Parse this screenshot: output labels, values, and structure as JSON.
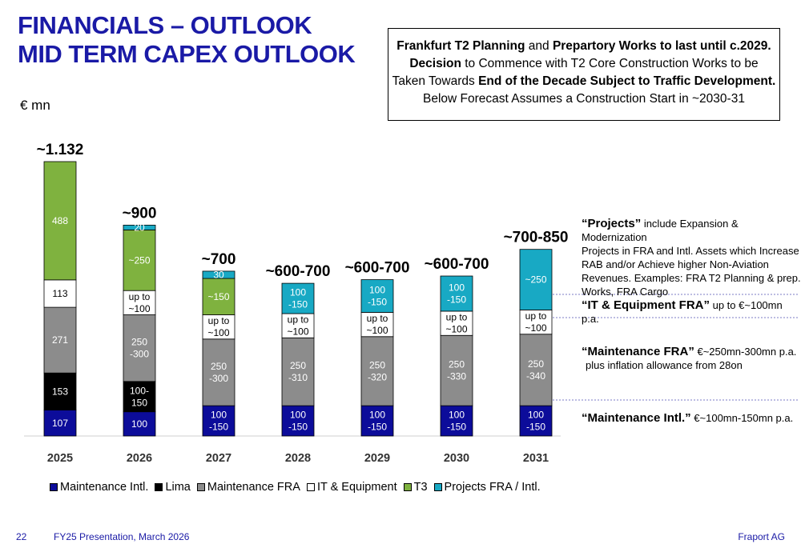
{
  "title_lines": [
    "FINANCIALS – OUTLOOK",
    "MID TERM CAPEX OUTLOOK"
  ],
  "unit": "€ mn",
  "infobox": {
    "l1_b1": "Frankfurt T2 Planning",
    "l1_t1": " and ",
    "l1_b2": "Prepartory Works to last until c.2029.",
    "l2_b1": "Decision",
    "l2_t1": " to Commence with T2 Core Construction Works to be",
    "l3_t1": "Taken Towards ",
    "l3_b1": "End of the Decade Subject to Traffic Development.",
    "l4_t1": "Below Forecast Assumes a Construction Start in ~2030-31"
  },
  "side_notes": {
    "projects_title": "“Projects”",
    "projects_text_1": " include Expansion & Modernization",
    "projects_text_2": "Projects in FRA and Intl. Assets which Increase",
    "projects_text_3": "RAB and/or Achieve higher Non-Aviation",
    "projects_text_4": "Revenues. Examples: FRA T2 Planning & prep.",
    "projects_text_5": "Works, FRA Cargo",
    "it_title": "“IT & Equipment FRA”",
    "it_text": " up to €~100mn p.a.",
    "mfra_title": "“Maintenance FRA”",
    "mfra_text_1": " €~250mn-300mn p.a.",
    "mfra_text_2": "plus inflation allowance from 28on",
    "mintl_title": "“Maintenance Intl.”",
    "mintl_text": " €~100mn-150mn p.a."
  },
  "chart_data": {
    "type": "bar",
    "stacked": true,
    "categories": [
      "2025",
      "2026",
      "2027",
      "2028",
      "2029",
      "2030",
      "2031"
    ],
    "totals": [
      "~1.132",
      "~900",
      "~700",
      "~600-700",
      "~600-700",
      "~600-700",
      "~700-850"
    ],
    "colors": {
      "Maintenance Intl.": "#0c0c9a",
      "Lima": "#000000",
      "Maintenance FRA": "#8c8c8c",
      "IT & Equipment": "#ffffff",
      "T3": "#7fb23f",
      "Projects FRA / Intl.": "#18a9c4"
    },
    "series": [
      {
        "name": "Maintenance Intl.",
        "values": [
          107,
          100,
          125,
          125,
          125,
          125,
          125
        ],
        "labels": [
          "107",
          "100",
          "100\n-150",
          "100\n-150",
          "100\n-150",
          "100\n-150",
          "100\n-150"
        ]
      },
      {
        "name": "Lima",
        "values": [
          153,
          125,
          0,
          0,
          0,
          0,
          0
        ],
        "labels": [
          "153",
          "100-\n150",
          "",
          "",
          "",
          "",
          ""
        ]
      },
      {
        "name": "Maintenance FRA",
        "values": [
          271,
          275,
          275,
          280,
          285,
          290,
          295
        ],
        "labels": [
          "271",
          "250\n-300",
          "250\n-300",
          "250\n-310",
          "250\n-320",
          "250\n-330",
          "250\n-340"
        ]
      },
      {
        "name": "IT & Equipment",
        "values": [
          113,
          100,
          100,
          100,
          100,
          100,
          100
        ],
        "labels": [
          "113",
          "up to\n~100",
          "up to\n~100",
          "up to\n~100",
          "up to\n~100",
          "up to\n~100",
          "up to\n~100"
        ]
      },
      {
        "name": "T3",
        "values": [
          488,
          250,
          150,
          0,
          0,
          0,
          0
        ],
        "labels": [
          "488",
          "~250",
          "~150",
          "",
          "",
          "",
          ""
        ]
      },
      {
        "name": "Projects FRA / Intl.",
        "values": [
          0,
          20,
          30,
          125,
          135,
          145,
          250
        ],
        "labels": [
          "",
          "20",
          "30",
          "100\n-150",
          "100\n-150",
          "100\n-150",
          "~250"
        ]
      }
    ],
    "legend_position": "bottom",
    "ylim": [
      0,
      1132
    ],
    "grid": false
  },
  "footer": {
    "page": "22",
    "presentation": "FY25 Presentation, March 2026",
    "company": "Fraport AG"
  }
}
